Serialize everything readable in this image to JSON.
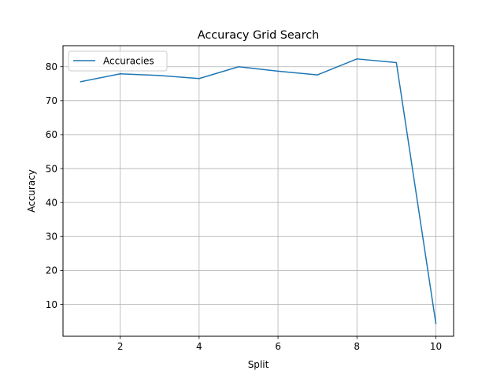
{
  "chart_data": {
    "type": "line",
    "title": "Accuracy Grid Search",
    "xlabel": "Split",
    "ylabel": "Accuracy",
    "xlim": [
      0.55,
      10.45
    ],
    "ylim": [
      0.6,
      86.2
    ],
    "xticks": [
      2,
      4,
      6,
      8,
      10
    ],
    "yticks": [
      10,
      20,
      30,
      40,
      50,
      60,
      70,
      80
    ],
    "grid": true,
    "legend_position": "top-left",
    "series": [
      {
        "name": "Accuracies",
        "color": "#1f77b4",
        "x": [
          1,
          2,
          3,
          4,
          5,
          6,
          7,
          8,
          9,
          10
        ],
        "y": [
          75.6,
          77.9,
          77.4,
          76.5,
          80.0,
          78.7,
          77.6,
          82.3,
          81.2,
          4.4
        ]
      }
    ]
  }
}
